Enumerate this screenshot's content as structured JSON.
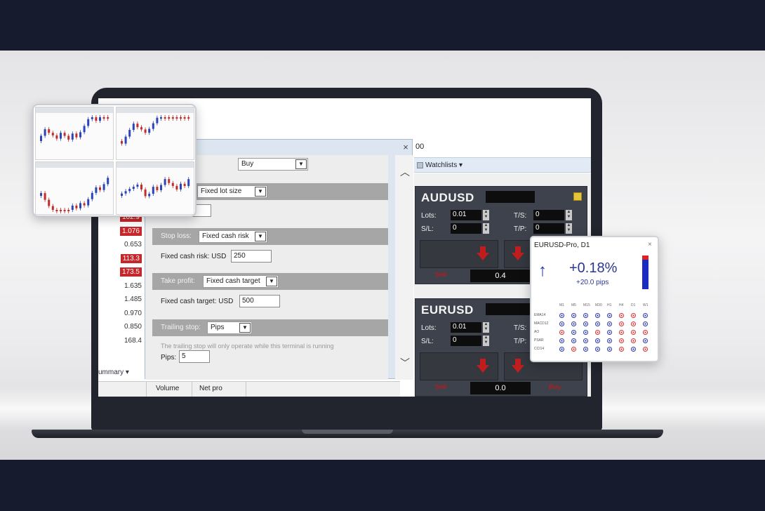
{
  "left_table": {
    "values": [
      "102.9",
      "1.076",
      "0.653",
      "113.3",
      "173.5",
      "1.635",
      "1.485",
      "0.970",
      "0.850",
      "168.4"
    ],
    "highlighted": [
      true,
      true,
      false,
      true,
      true,
      false,
      false,
      false,
      false,
      false
    ],
    "summary_label": "ummary ▾",
    "columns": [
      "Volume",
      "Net pro"
    ]
  },
  "order_dialog": {
    "close": "×",
    "direction": "Buy",
    "lot_mode": "Fixed lot size",
    "stop_loss": {
      "label": "Stop loss:",
      "mode": "Fixed cash risk",
      "field_label": "Fixed cash risk: USD",
      "value": "250"
    },
    "take_profit": {
      "label": "Take profit:",
      "mode": "Fixed cash target",
      "field_label": "Fixed cash target: USD",
      "value": "500"
    },
    "trailing_stop": {
      "label": "Trailing stop:",
      "mode": "Pips",
      "note": "The trailing stop will only operate while this terminal is running",
      "pips_label": "Pips:",
      "value": "5"
    }
  },
  "right_panel": {
    "top_text": "00",
    "watchlists_label": "Watchlists ▾"
  },
  "tiles": [
    {
      "symbol": "AUDUSD",
      "lots_label": "Lots:",
      "lots": "0.01",
      "sl_label": "S/L:",
      "sl": "0",
      "ts_label": "T/S:",
      "ts": "0",
      "tp_label": "T/P:",
      "tp": "0",
      "sell_text": "Sell",
      "spread": "0.4"
    },
    {
      "symbol": "EURUSD",
      "lots_label": "Lots:",
      "lots": "0.01",
      "sl_label": "S/L:",
      "sl": "0",
      "ts_label": "T/S:",
      "ts": "0",
      "tp_label": "T/P:",
      "tp": "",
      "sell_text": "Sell",
      "buy_text": "Buy",
      "spread": "0.0"
    }
  ],
  "indicator_popup": {
    "title": "EURUSD-Pro, D1",
    "close": "×",
    "change_pct": "+0.18%",
    "change_pips": "+20.0 pips",
    "timeframes": [
      "M1",
      "M5",
      "M15",
      "M30",
      "H1",
      "H4",
      "D1",
      "W1"
    ],
    "indicators": [
      "EMA14",
      "MACD12",
      "AO",
      "PSAR",
      "CCI14"
    ],
    "signals": [
      [
        "b",
        "b",
        "b",
        "b",
        "b",
        "r",
        "r",
        "b"
      ],
      [
        "b",
        "b",
        "b",
        "b",
        "b",
        "r",
        "r",
        "b"
      ],
      [
        "r",
        "b",
        "b",
        "r",
        "b",
        "r",
        "r",
        "r"
      ],
      [
        "b",
        "b",
        "b",
        "b",
        "b",
        "r",
        "r",
        "b"
      ],
      [
        "b",
        "r",
        "b",
        "b",
        "b",
        "r",
        "b",
        "r"
      ]
    ],
    "colors": {
      "up": "#2b39a8",
      "down": "#d43232"
    }
  }
}
